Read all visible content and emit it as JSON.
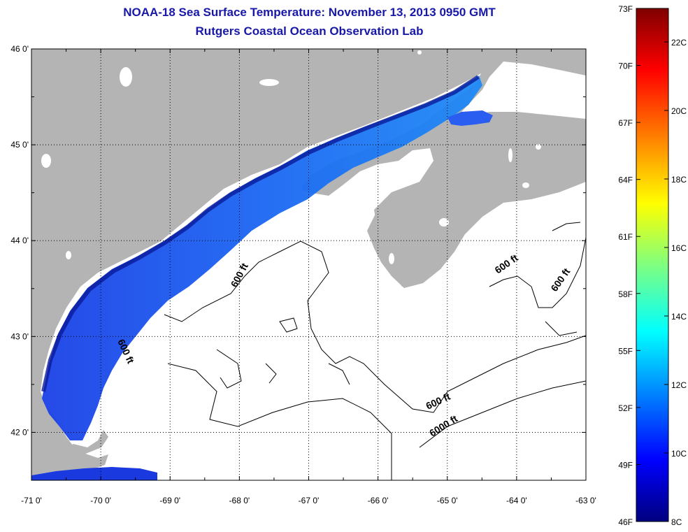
{
  "title": {
    "line1": "NOAA-18 Sea Surface Temperature:  November 13, 2013 0950 GMT",
    "line2": "Rutgers Coastal Ocean Observation Lab"
  },
  "map": {
    "lon_range": [
      -71,
      -63
    ],
    "lat_range": [
      41.5,
      46.0
    ],
    "x_ticks": [
      {
        "lon": -71,
        "label": "-71 0'"
      },
      {
        "lon": -70,
        "label": "-70 0'"
      },
      {
        "lon": -69,
        "label": "-69 0'"
      },
      {
        "lon": -68,
        "label": "-68 0'"
      },
      {
        "lon": -67,
        "label": "-67 0'"
      },
      {
        "lon": -66,
        "label": "-66 0'"
      },
      {
        "lon": -65,
        "label": "-65 0'"
      },
      {
        "lon": -64,
        "label": "-64 0'"
      },
      {
        "lon": -63,
        "label": "-63 0'"
      }
    ],
    "y_ticks": [
      {
        "lat": 46,
        "label": "46 0'"
      },
      {
        "lat": 45,
        "label": "45 0'"
      },
      {
        "lat": 44,
        "label": "44 0'"
      },
      {
        "lat": 43,
        "label": "43 0'"
      },
      {
        "lat": 42,
        "label": "42 0'"
      }
    ],
    "land_color": "#b4b4b4",
    "contour_labels": [
      {
        "text": "600 ft"
      },
      {
        "text": "600 ft"
      },
      {
        "text": "600 ft"
      },
      {
        "text": "600 ft"
      },
      {
        "text": "600 ft"
      },
      {
        "text": "6000 ft"
      }
    ]
  },
  "colorbar": {
    "f_labels": [
      "73F",
      "70F",
      "67F",
      "64F",
      "61F",
      "58F",
      "55F",
      "52F",
      "49F",
      "46F"
    ],
    "c_labels": [
      "22C",
      "20C",
      "18C",
      "16C",
      "14C",
      "12C",
      "10C",
      "8C"
    ],
    "colors": [
      "#00007f",
      "#0000ff",
      "#007fff",
      "#00ffff",
      "#7fff7f",
      "#ffff00",
      "#ff7f00",
      "#ff0000",
      "#7f0000"
    ]
  }
}
